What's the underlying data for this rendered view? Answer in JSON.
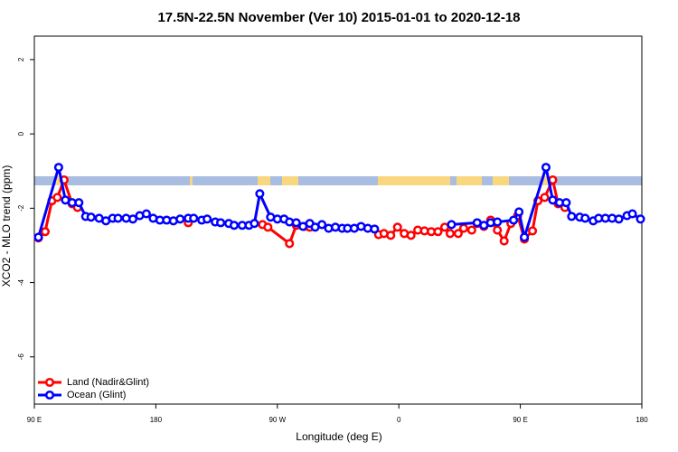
{
  "chart_data": {
    "type": "line",
    "title": "17.5N-22.5N November (Ver 10)   2015-01-01 to 2020-12-18",
    "x_label": "Longitude (deg E)",
    "y_label": "XCO2 - MLO trend (ppm)",
    "xlim": [
      90,
      540
    ],
    "ylim": [
      -7.27,
      2.63
    ],
    "xticks": [
      {
        "value": 90,
        "label": "90 E"
      },
      180,
      {
        "value": 270,
        "label": "90 W"
      },
      {
        "value": 360,
        "label": "0"
      },
      {
        "value": 450,
        "label": "90 E"
      },
      {
        "value": 540,
        "label": "180"
      }
    ],
    "yticks": [
      2,
      0,
      -2,
      -4,
      -6
    ],
    "legend": "bottom-left",
    "series": [
      {
        "name": "Land (Nadir&Glint)",
        "color": "#ff0000",
        "x": [
          93,
          98,
          103,
          107,
          112,
          118,
          122,
          160,
          204,
          230,
          259,
          263,
          279,
          284,
          290,
          294,
          320,
          345,
          349,
          354,
          359,
          364,
          369,
          374,
          379,
          384,
          389,
          394,
          398,
          404,
          408,
          414,
          418,
          423,
          428,
          433,
          438,
          443,
          448,
          453,
          459,
          463,
          468,
          474,
          478,
          483
        ],
        "values": [
          -2.8,
          -2.63,
          -1.8,
          -1.71,
          -1.24,
          -1.88,
          -1.98,
          null,
          -2.39,
          null,
          -2.44,
          -2.51,
          -2.95,
          -2.46,
          -2.49,
          -2.51,
          null,
          -2.71,
          -2.68,
          -2.73,
          -2.51,
          -2.68,
          -2.73,
          -2.59,
          -2.61,
          -2.63,
          -2.63,
          -2.51,
          -2.68,
          -2.68,
          -2.54,
          -2.59,
          -2.41,
          -2.49,
          -2.32,
          -2.59,
          -2.88,
          -2.41,
          -2.2,
          -2.83,
          -2.61,
          -1.8,
          -1.71,
          -1.24,
          -1.88,
          -1.98
        ]
      },
      {
        "name": "Ocean (Glint)",
        "color": "#0000ff",
        "x": [
          93,
          108,
          113,
          118,
          123,
          128,
          132,
          138,
          143,
          148,
          152,
          158,
          163,
          168,
          173,
          178,
          183,
          188,
          193,
          198,
          204,
          208,
          214,
          218,
          224,
          228,
          234,
          238,
          244,
          249,
          253,
          257,
          265,
          270,
          275,
          279,
          284,
          289,
          294,
          298,
          303,
          308,
          313,
          318,
          322,
          327,
          332,
          337,
          342,
          370,
          399,
          418,
          423,
          428,
          433,
          445,
          449,
          453,
          469,
          474,
          479,
          484,
          488,
          494,
          498,
          504,
          508,
          513,
          518,
          523,
          529,
          533,
          539
        ],
        "values": [
          -2.78,
          -0.9,
          -1.78,
          -1.85,
          -1.85,
          -2.22,
          -2.24,
          -2.27,
          -2.34,
          -2.27,
          -2.27,
          -2.27,
          -2.29,
          -2.2,
          -2.15,
          -2.27,
          -2.32,
          -2.32,
          -2.34,
          -2.29,
          -2.27,
          -2.27,
          -2.32,
          -2.29,
          -2.37,
          -2.39,
          -2.41,
          -2.46,
          -2.46,
          -2.46,
          -2.41,
          -1.61,
          -2.24,
          -2.29,
          -2.29,
          -2.37,
          -2.39,
          -2.49,
          -2.41,
          -2.51,
          -2.44,
          -2.54,
          -2.51,
          -2.54,
          -2.54,
          -2.54,
          -2.49,
          -2.54,
          -2.56,
          null,
          -2.44,
          -2.39,
          -2.46,
          -2.39,
          -2.37,
          -2.32,
          -2.1,
          -2.78,
          -0.9,
          -1.78,
          -1.85,
          -1.85,
          -2.22,
          -2.24,
          -2.27,
          -2.34,
          -2.27,
          -2.27,
          -2.27,
          -2.29,
          -2.2,
          -2.15,
          -2.29
        ]
      }
    ]
  }
}
